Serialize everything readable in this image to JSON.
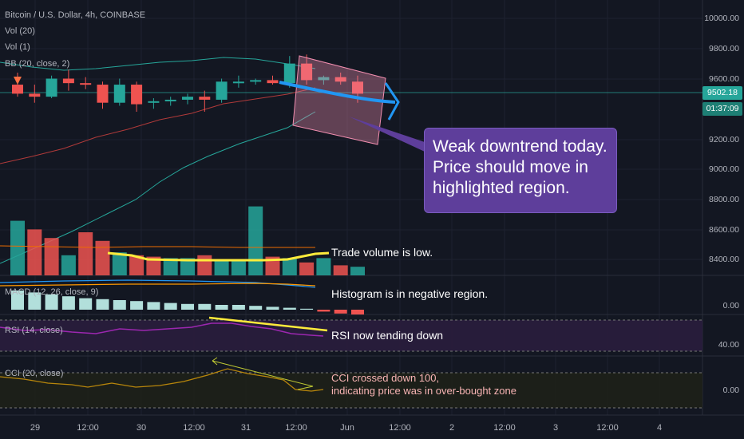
{
  "header": {
    "symbol": "Bitcoin / U.S. Dollar, 4h, COINBASE",
    "vol20": "Vol (20)",
    "vol1": "Vol (1)",
    "bb": "BB (20, close, 2)"
  },
  "panes": {
    "macd_label": "MACD (12, 26, close, 9)",
    "rsi_label": "RSI (14, close)",
    "cci_label": "CCI (20, close)"
  },
  "price_axis": [
    "10000.00",
    "9800.00",
    "9600.00",
    "9200.00",
    "9000.00",
    "8800.00",
    "8600.00",
    "8400.00"
  ],
  "macd_axis": [
    "0.00"
  ],
  "rsi_axis": [
    "40.00"
  ],
  "cci_axis": [
    "0.00"
  ],
  "last_price": "9502.18",
  "countdown": "01:37:09",
  "time_axis": [
    "29",
    "12:00",
    "30",
    "12:00",
    "31",
    "12:00",
    "Jun",
    "12:00",
    "2",
    "12:00",
    "3",
    "12:00",
    "4"
  ],
  "annotations": {
    "callout_lines": [
      "Weak downtrend today.",
      "Price should move in",
      "highlighted region."
    ],
    "volume_note": "Trade volume is low.",
    "macd_note": "Histogram is in negative region.",
    "rsi_note": "RSI now tending down",
    "cci_note_line1": "CCI crossed down 100,",
    "cci_note_line2": "indicating price was in over-bought zone"
  },
  "colors": {
    "background": "#131722",
    "up": "#26a69a",
    "down": "#ef5350",
    "bb_band": "#26a69a",
    "bb_basis": "#b03a3a",
    "callout": "#5e3e9b",
    "arrow": "#2196f3",
    "highlight": "#f48fb1",
    "rsi_band": "#2a1d3d",
    "yellow": "#ffeb3b"
  },
  "chart_data": {
    "type": "candlestick",
    "ylim": [
      8300,
      10100
    ],
    "candles": [
      {
        "o": 9560,
        "h": 9640,
        "l": 9480,
        "c": 9500
      },
      {
        "o": 9500,
        "h": 9560,
        "l": 9440,
        "c": 9480
      },
      {
        "o": 9480,
        "h": 9620,
        "l": 9470,
        "c": 9600
      },
      {
        "o": 9600,
        "h": 9660,
        "l": 9520,
        "c": 9570
      },
      {
        "o": 9570,
        "h": 9610,
        "l": 9530,
        "c": 9560
      },
      {
        "o": 9560,
        "h": 9580,
        "l": 9400,
        "c": 9440
      },
      {
        "o": 9440,
        "h": 9600,
        "l": 9420,
        "c": 9560
      },
      {
        "o": 9560,
        "h": 9580,
        "l": 9380,
        "c": 9430
      },
      {
        "o": 9440,
        "h": 9470,
        "l": 9400,
        "c": 9450
      },
      {
        "o": 9450,
        "h": 9480,
        "l": 9420,
        "c": 9460
      },
      {
        "o": 9460,
        "h": 9500,
        "l": 9430,
        "c": 9480
      },
      {
        "o": 9480,
        "h": 9520,
        "l": 9380,
        "c": 9460
      },
      {
        "o": 9460,
        "h": 9600,
        "l": 9440,
        "c": 9580
      },
      {
        "o": 9580,
        "h": 9620,
        "l": 9540,
        "c": 9580
      },
      {
        "o": 9580,
        "h": 9600,
        "l": 9560,
        "c": 9590
      },
      {
        "o": 9590,
        "h": 9620,
        "l": 9560,
        "c": 9570
      },
      {
        "o": 9570,
        "h": 9750,
        "l": 9540,
        "c": 9700
      },
      {
        "o": 9700,
        "h": 9760,
        "l": 9560,
        "c": 9590
      },
      {
        "o": 9590,
        "h": 9620,
        "l": 9560,
        "c": 9610
      },
      {
        "o": 9610,
        "h": 9640,
        "l": 9560,
        "c": 9580
      },
      {
        "o": 9580,
        "h": 9620,
        "l": 9440,
        "c": 9500
      }
    ],
    "volumes": [
      {
        "v": 38,
        "up": true
      },
      {
        "v": 32,
        "up": false
      },
      {
        "v": 26,
        "up": false
      },
      {
        "v": 14,
        "up": true
      },
      {
        "v": 30,
        "up": false
      },
      {
        "v": 24,
        "up": false
      },
      {
        "v": 16,
        "up": true
      },
      {
        "v": 14,
        "up": false
      },
      {
        "v": 13,
        "up": false
      },
      {
        "v": 12,
        "up": true
      },
      {
        "v": 12,
        "up": true
      },
      {
        "v": 14,
        "up": false
      },
      {
        "v": 10,
        "up": true
      },
      {
        "v": 11,
        "up": true
      },
      {
        "v": 48,
        "up": true
      },
      {
        "v": 13,
        "up": false
      },
      {
        "v": 12,
        "up": true
      },
      {
        "v": 9,
        "up": false
      },
      {
        "v": 12,
        "up": true
      },
      {
        "v": 7,
        "up": false
      },
      {
        "v": 6,
        "up": true
      }
    ],
    "macd_hist": [
      20,
      18,
      16,
      14,
      12,
      11,
      10,
      9,
      8,
      7,
      6,
      6,
      5,
      5,
      4,
      3,
      2,
      1,
      -2,
      -4,
      -5
    ]
  }
}
